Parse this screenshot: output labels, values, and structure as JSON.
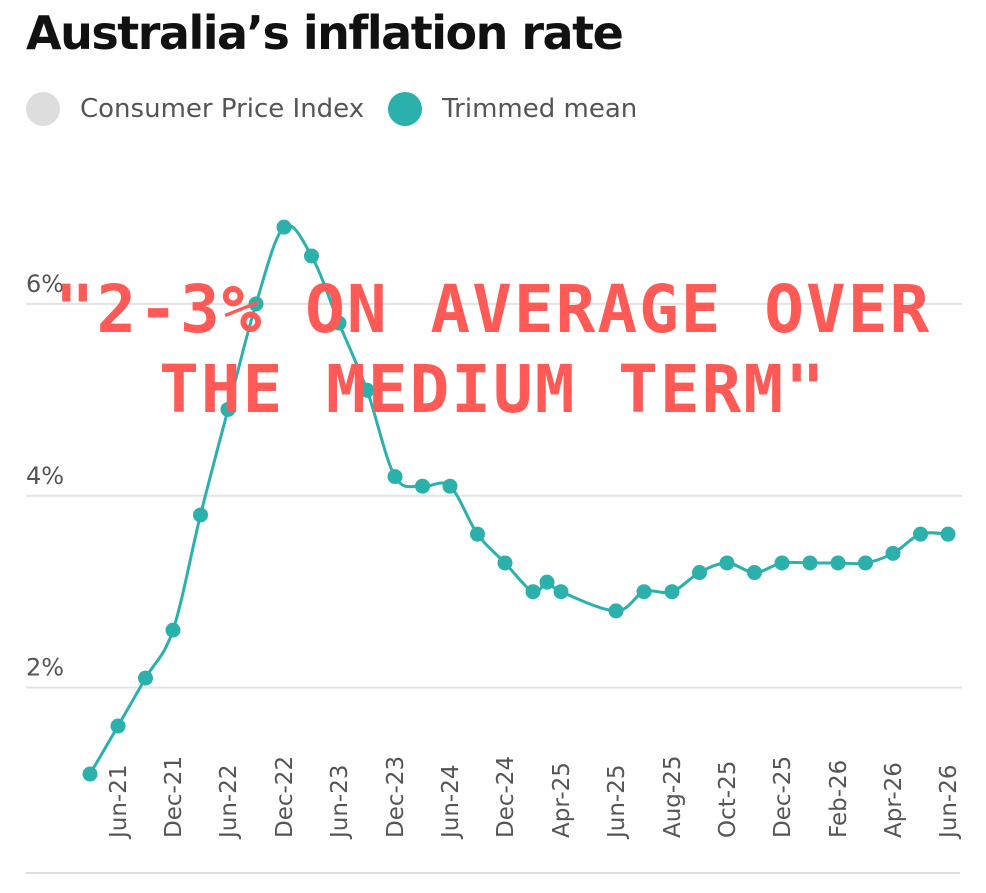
{
  "chart_data": {
    "type": "line",
    "title": "Australia’s inflation rate",
    "legend": {
      "placement": "top-left",
      "entries": [
        {
          "name": "Consumer Price Index",
          "color": "#dddddd"
        },
        {
          "name": "Trimmed mean",
          "color": "#2bb0ac"
        }
      ]
    },
    "ylim": [
      0.6,
      7.5
    ],
    "y_ticks": [
      {
        "value": 2,
        "label": "2%"
      },
      {
        "value": 4,
        "label": "4%"
      },
      {
        "value": 6,
        "label": "6%"
      }
    ],
    "grid": true,
    "x_tick_labels": [
      "Jun-21",
      "Dec-21",
      "Jun-22",
      "Dec-22",
      "Jun-23",
      "Dec-23",
      "Jun-24",
      "Dec-24",
      "Apr-25",
      "Jun-25",
      "Aug-25",
      "Oct-25",
      "Dec-25",
      "Feb-26",
      "Apr-26",
      "Jun-26"
    ],
    "series": [
      {
        "name": "Trimmed mean",
        "color": "#2bb0ac",
        "x": [
          "Mar-21",
          "Jun-21",
          "Sep-21",
          "Dec-21",
          "Mar-22",
          "Jun-22",
          "Sep-22",
          "Dec-22",
          "Mar-23",
          "Jun-23",
          "Sep-23",
          "Dec-23",
          "Mar-24",
          "Jun-24",
          "Sep-24",
          "Dec-24",
          "Feb-25",
          "Mar-25",
          "Apr-25",
          "Jun-25",
          "Jul-25",
          "Aug-25",
          "Sep-25",
          "Oct-25",
          "Nov-25",
          "Dec-25",
          "Jan-26",
          "Feb-26",
          "Mar-26",
          "Apr-26",
          "May-26",
          "Jun-26"
        ],
        "values": [
          1.1,
          1.6,
          2.1,
          2.6,
          3.8,
          4.9,
          6.0,
          6.8,
          6.5,
          5.8,
          5.1,
          4.2,
          4.1,
          4.1,
          3.6,
          3.3,
          3.0,
          3.1,
          3.0,
          2.8,
          3.0,
          3.0,
          3.2,
          3.3,
          3.2,
          3.3,
          3.3,
          3.3,
          3.3,
          3.4,
          3.6,
          3.6
        ]
      }
    ]
  },
  "overlay": {
    "line1": "\"2-3% on average over",
    "line2": "the medium term\""
  }
}
